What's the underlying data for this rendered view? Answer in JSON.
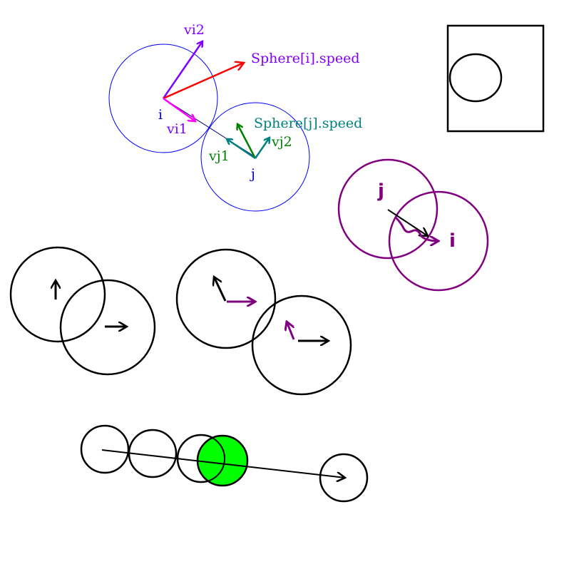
{
  "labels": {
    "vi2": "vi2",
    "sphere_i_speed": "Sphere[i].speed",
    "i": "i",
    "vi1": "vi1",
    "sphere_j_speed": "Sphere[j].speed",
    "vj2": "vj2",
    "vj1": "vj1",
    "j": "j",
    "hand_j": "j",
    "hand_i": "i"
  },
  "colors": {
    "purple_text": "#8000ff",
    "blue_text": "#0000cc",
    "teal": "#008080",
    "green": "#008000",
    "red": "#ff0000",
    "magenta": "#ff00ff",
    "dark_purple": "#800080",
    "fill_green": "#00ff00",
    "black": "#000000"
  }
}
